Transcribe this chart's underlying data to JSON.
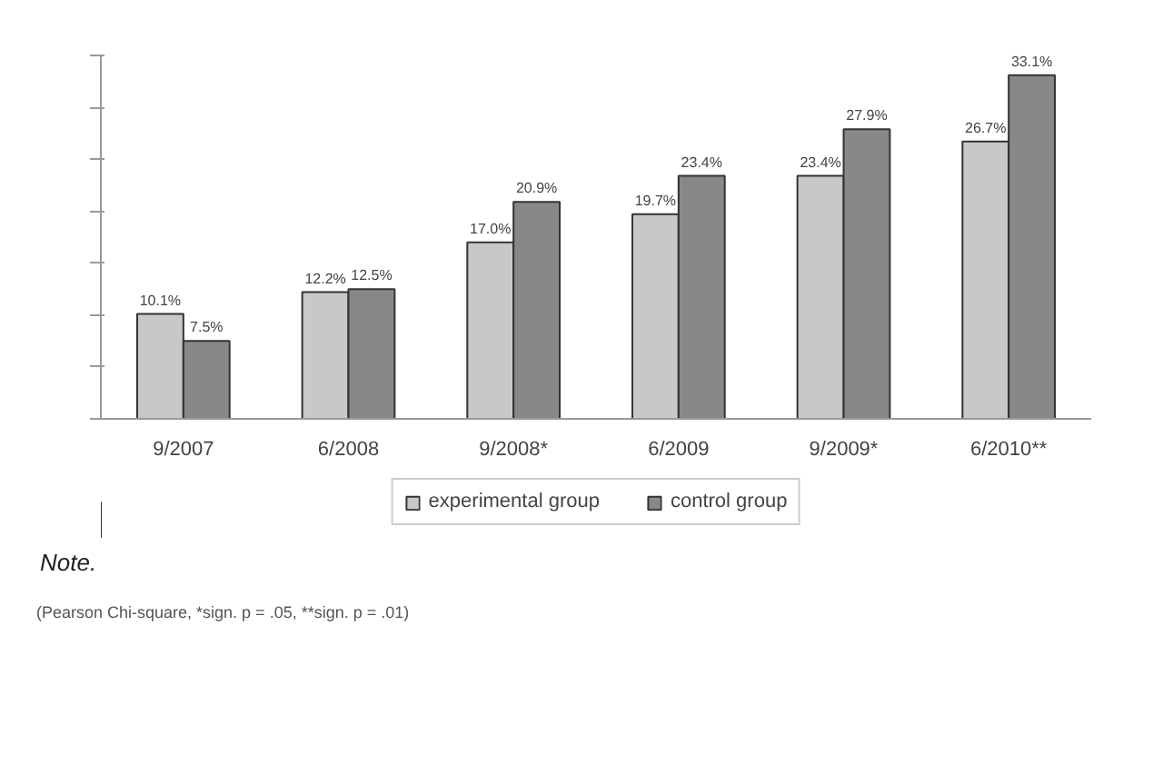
{
  "chart_data": {
    "type": "bar",
    "categories": [
      "9/2007",
      "6/2008",
      "9/2008*",
      "6/2009",
      "9/2009*",
      "6/2010**"
    ],
    "series": [
      {
        "name": "experimental group",
        "color": "#c8c8c8",
        "values": [
          10.1,
          12.2,
          17.0,
          19.7,
          23.4,
          26.7
        ],
        "value_labels": [
          "10.1%",
          "12.2%",
          "17.0%",
          "19.7%",
          "23.4%",
          "26.7%"
        ]
      },
      {
        "name": "control group",
        "color": "#888888",
        "values": [
          7.5,
          12.5,
          20.9,
          23.4,
          27.9,
          33.1
        ],
        "value_labels": [
          "7.5%",
          "12.5%",
          "20.9%",
          "23.4%",
          "27.9%",
          "33.1%"
        ]
      }
    ],
    "ylim": [
      0,
      35
    ],
    "yticks": [
      {
        "value": 0,
        "label": null
      },
      {
        "value": 5,
        "label": null
      },
      {
        "value": 10,
        "label": null
      },
      {
        "value": 15,
        "label": null
      },
      {
        "value": 20,
        "label": null
      },
      {
        "value": 25,
        "label": null
      },
      {
        "value": 30,
        "label": null
      },
      {
        "value": 35,
        "label": null
      }
    ],
    "tick_labels": "x",
    "grid": false,
    "legend": "bottom",
    "annotations": [
      "Note.",
      "(Pearson Chi-square, *sign. p = .05, **sign. p = .01)"
    ]
  }
}
